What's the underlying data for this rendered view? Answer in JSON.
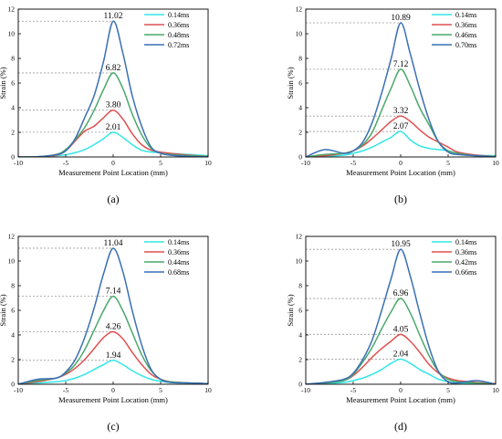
{
  "chart_data": [
    {
      "type": "line",
      "panel_label": "(a)",
      "xlabel": "Measurement Point Location (mm)",
      "ylabel": "Strain (%)",
      "xlim": [
        -10,
        10
      ],
      "ylim": [
        0,
        12
      ],
      "x_ticks": [
        -10,
        -5,
        0,
        5,
        10
      ],
      "y_ticks": [
        0,
        2,
        4,
        6,
        8,
        10,
        12
      ],
      "legend_position": "top-right",
      "grid": false,
      "series": [
        {
          "name": "0.14ms",
          "color": "#33e6e6",
          "peak_label": "2.01",
          "x": [
            -10,
            -8,
            -6,
            -5,
            -4,
            -3,
            -2,
            -1,
            0,
            1,
            2,
            3,
            4,
            5,
            6,
            8,
            10
          ],
          "y": [
            0,
            0.02,
            0.1,
            0.18,
            0.35,
            0.6,
            1.0,
            1.5,
            2.01,
            1.6,
            1.0,
            0.55,
            0.4,
            0.35,
            0.3,
            0.2,
            0.1
          ]
        },
        {
          "name": "0.36ms",
          "color": "#e05050",
          "peak_label": "3.80",
          "x": [
            -10,
            -8,
            -6,
            -5,
            -4,
            -3,
            -2,
            -1,
            0,
            1,
            2,
            3,
            4,
            5,
            6,
            8,
            10
          ],
          "y": [
            0,
            0.02,
            0.15,
            0.5,
            1.3,
            2.1,
            2.5,
            3.2,
            3.8,
            3.1,
            1.9,
            1.0,
            0.55,
            0.4,
            0.3,
            0.15,
            0.05
          ]
        },
        {
          "name": "0.48ms",
          "color": "#4aa86a",
          "peak_label": "6.82",
          "x": [
            -10,
            -8,
            -6,
            -5,
            -4,
            -3,
            -2,
            -1,
            0,
            1,
            2,
            3,
            4,
            5,
            6,
            8,
            10
          ],
          "y": [
            0,
            0.02,
            0.2,
            0.6,
            1.4,
            2.4,
            3.8,
            5.5,
            6.82,
            5.6,
            3.5,
            1.8,
            0.7,
            0.3,
            0.2,
            0.1,
            0.05
          ]
        },
        {
          "name": "0.72ms",
          "color": "#3a6fb5",
          "peak_label": "11.02",
          "x": [
            -10,
            -8,
            -6,
            -5,
            -4,
            -3,
            -2,
            -1,
            0,
            1,
            2,
            3,
            4,
            5,
            6,
            8,
            10
          ],
          "y": [
            0,
            0.02,
            0.2,
            0.5,
            1.5,
            3.2,
            5.0,
            7.8,
            11.02,
            8.5,
            5.0,
            2.5,
            0.8,
            0.3,
            0.15,
            0.05,
            0
          ]
        }
      ]
    },
    {
      "type": "line",
      "panel_label": "(b)",
      "xlabel": "Measurement Point Location (mm)",
      "ylabel": "Strain (%)",
      "xlim": [
        -10,
        10
      ],
      "ylim": [
        0,
        12
      ],
      "x_ticks": [
        -10,
        -5,
        0,
        5,
        10
      ],
      "y_ticks": [
        0,
        2,
        4,
        6,
        8,
        10,
        12
      ],
      "legend_position": "top-right",
      "grid": false,
      "series": [
        {
          "name": "0.14ms",
          "color": "#33e6e6",
          "peak_label": "2.07",
          "x": [
            -10,
            -8,
            -6,
            -5,
            -4,
            -3,
            -2,
            -1,
            0,
            1,
            2,
            3,
            4,
            5,
            6,
            8,
            10
          ],
          "y": [
            0,
            0.05,
            0.15,
            0.3,
            0.5,
            0.8,
            1.2,
            1.6,
            2.07,
            1.4,
            0.9,
            0.7,
            0.6,
            0.5,
            0.3,
            0.15,
            0.1
          ]
        },
        {
          "name": "0.36ms",
          "color": "#e05050",
          "peak_label": "3.32",
          "x": [
            -10,
            -8,
            -6,
            -5,
            -4,
            -3,
            -2,
            -1,
            0,
            1,
            2,
            3,
            4,
            5,
            6,
            8,
            10
          ],
          "y": [
            0,
            0.1,
            0.3,
            0.5,
            0.9,
            1.5,
            2.2,
            2.9,
            3.32,
            2.9,
            2.2,
            1.6,
            1.2,
            0.8,
            0.4,
            0.15,
            0.05
          ]
        },
        {
          "name": "0.46ms",
          "color": "#4aa86a",
          "peak_label": "7.12",
          "x": [
            -10,
            -8,
            -6,
            -5,
            -4,
            -3,
            -2,
            -1,
            0,
            1,
            2,
            3,
            4,
            5,
            6,
            8,
            10
          ],
          "y": [
            0,
            0.2,
            0.3,
            0.5,
            1.0,
            2.0,
            3.8,
            5.6,
            7.12,
            5.8,
            4.0,
            2.6,
            1.2,
            0.5,
            0.3,
            0.1,
            0.05
          ]
        },
        {
          "name": "0.70ms",
          "color": "#3a6fb5",
          "peak_label": "10.89",
          "x": [
            -10,
            -8,
            -6,
            -5,
            -4,
            -3,
            -2,
            -1,
            0,
            1,
            2,
            3,
            4,
            5,
            6,
            8,
            10
          ],
          "y": [
            0,
            0.6,
            0.3,
            0.5,
            1.2,
            2.8,
            5.2,
            8.0,
            10.89,
            8.4,
            5.5,
            3.0,
            1.2,
            0.4,
            0.2,
            0.1,
            0
          ]
        }
      ]
    },
    {
      "type": "line",
      "panel_label": "(c)",
      "xlabel": "Measurement Point Location (mm)",
      "ylabel": "Strain (%)",
      "xlim": [
        -10,
        10
      ],
      "ylim": [
        0,
        12
      ],
      "x_ticks": [
        -10,
        -5,
        0,
        5,
        10
      ],
      "y_ticks": [
        0,
        2,
        4,
        6,
        8,
        10,
        12
      ],
      "legend_position": "top-right",
      "grid": false,
      "series": [
        {
          "name": "0.14ms",
          "color": "#33e6e6",
          "peak_label": "1.94",
          "x": [
            -10,
            -8,
            -6,
            -5,
            -4,
            -3,
            -2,
            -1,
            0,
            1,
            2,
            3,
            4,
            5,
            6,
            8,
            10
          ],
          "y": [
            0,
            0.1,
            0.2,
            0.3,
            0.5,
            0.8,
            1.2,
            1.6,
            1.94,
            1.6,
            1.1,
            0.7,
            0.4,
            0.25,
            0.15,
            0.1,
            0.05
          ]
        },
        {
          "name": "0.36ms",
          "color": "#e05050",
          "peak_label": "4.26",
          "x": [
            -10,
            -8,
            -6,
            -5,
            -4,
            -3,
            -2,
            -1,
            0,
            1,
            2,
            3,
            4,
            5,
            6,
            8,
            10
          ],
          "y": [
            0,
            0.2,
            0.5,
            0.8,
            1.3,
            2.0,
            2.9,
            3.8,
            4.26,
            3.7,
            2.6,
            1.6,
            0.8,
            0.4,
            0.2,
            0.1,
            0.05
          ]
        },
        {
          "name": "0.44ms",
          "color": "#4aa86a",
          "peak_label": "7.14",
          "x": [
            -10,
            -8,
            -6,
            -5,
            -4,
            -3,
            -2,
            -1,
            0,
            1,
            2,
            3,
            4,
            5,
            6,
            8,
            10
          ],
          "y": [
            0,
            0.3,
            0.5,
            0.9,
            1.6,
            2.8,
            4.4,
            6.0,
            7.14,
            6.0,
            4.2,
            2.4,
            1.1,
            0.4,
            0.2,
            0.1,
            0.05
          ]
        },
        {
          "name": "0.68ms",
          "color": "#3a6fb5",
          "peak_label": "11.04",
          "x": [
            -10,
            -8,
            -6,
            -5,
            -4,
            -3,
            -2,
            -1,
            0,
            1,
            2,
            3,
            4,
            5,
            6,
            8,
            10
          ],
          "y": [
            0,
            0.4,
            0.5,
            1.0,
            2.0,
            3.8,
            6.2,
            9.0,
            11.04,
            9.2,
            6.0,
            3.2,
            1.2,
            0.4,
            0.15,
            0.1,
            0.05
          ]
        }
      ]
    },
    {
      "type": "line",
      "panel_label": "(d)",
      "xlabel": "Measurement Point Location (mm)",
      "ylabel": "Strain (%)",
      "xlim": [
        -10,
        10
      ],
      "ylim": [
        0,
        12
      ],
      "x_ticks": [
        -10,
        -5,
        0,
        5,
        10
      ],
      "y_ticks": [
        0,
        2,
        4,
        6,
        8,
        10,
        12
      ],
      "legend_position": "top-right",
      "grid": false,
      "series": [
        {
          "name": "0.14ms",
          "color": "#33e6e6",
          "peak_label": "2.04",
          "x": [
            -10,
            -8,
            -6,
            -5,
            -4,
            -3,
            -2,
            -1,
            0,
            1,
            2,
            3,
            4,
            5,
            6,
            8,
            10
          ],
          "y": [
            0,
            0.05,
            0.15,
            0.3,
            0.5,
            0.8,
            1.2,
            1.7,
            2.04,
            1.7,
            1.2,
            0.8,
            0.4,
            0.2,
            0.1,
            0.05,
            0
          ]
        },
        {
          "name": "0.36ms",
          "color": "#e05050",
          "peak_label": "4.05",
          "x": [
            -10,
            -8,
            -6,
            -5,
            -4,
            -3,
            -2,
            -1,
            0,
            1,
            2,
            3,
            4,
            5,
            6,
            8,
            10
          ],
          "y": [
            0,
            0.1,
            0.3,
            0.7,
            1.4,
            2.2,
            2.9,
            3.5,
            4.05,
            3.5,
            2.6,
            1.6,
            0.9,
            0.5,
            0.3,
            0.15,
            0.05
          ]
        },
        {
          "name": "0.42ms",
          "color": "#4aa86a",
          "peak_label": "6.96",
          "x": [
            -10,
            -8,
            -6,
            -5,
            -4,
            -3,
            -2,
            -1,
            0,
            1,
            2,
            3,
            4,
            5,
            6,
            8,
            10
          ],
          "y": [
            0,
            0.1,
            0.3,
            0.8,
            1.8,
            3.0,
            4.5,
            5.9,
            6.96,
            5.8,
            4.0,
            2.3,
            1.0,
            0.4,
            0.2,
            0.1,
            0
          ]
        },
        {
          "name": "0.66ms",
          "color": "#3a6fb5",
          "peak_label": "10.95",
          "x": [
            -10,
            -8,
            -6,
            -5,
            -4,
            -3,
            -2,
            -1,
            0,
            1,
            2,
            3,
            4,
            5,
            6,
            8,
            10
          ],
          "y": [
            0,
            0.15,
            0.4,
            0.9,
            2.0,
            3.6,
            6.0,
            8.6,
            10.95,
            8.8,
            5.8,
            3.0,
            1.0,
            0.2,
            0.1,
            0.3,
            0
          ]
        }
      ]
    }
  ]
}
